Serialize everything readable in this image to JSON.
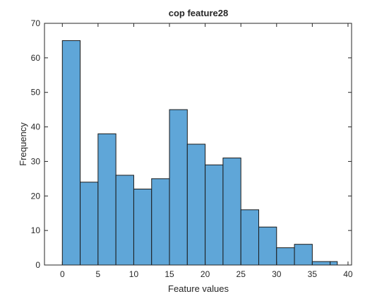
{
  "chart_data": {
    "type": "bar",
    "title": "cop feature28",
    "xlabel": "Feature values",
    "ylabel": "Frequency",
    "xlim": [
      -2.5,
      40.5
    ],
    "ylim": [
      0,
      70
    ],
    "bin_edges": [
      0,
      2.5,
      5,
      7.5,
      10,
      12.5,
      15,
      17.5,
      20,
      22.5,
      25,
      27.5,
      30,
      32.5,
      35,
      37.5,
      38.5
    ],
    "values": [
      65,
      24,
      38,
      26,
      22,
      25,
      45,
      35,
      29,
      31,
      16,
      11,
      5,
      6,
      1,
      1
    ],
    "xticks": [
      0,
      5,
      10,
      15,
      20,
      25,
      30,
      35,
      40
    ],
    "yticks": [
      0,
      10,
      20,
      30,
      40,
      50,
      60,
      70
    ],
    "bar_color": "#5fa6d8",
    "edge_color": "#1a1a1a",
    "grid": false,
    "legend": "none"
  }
}
